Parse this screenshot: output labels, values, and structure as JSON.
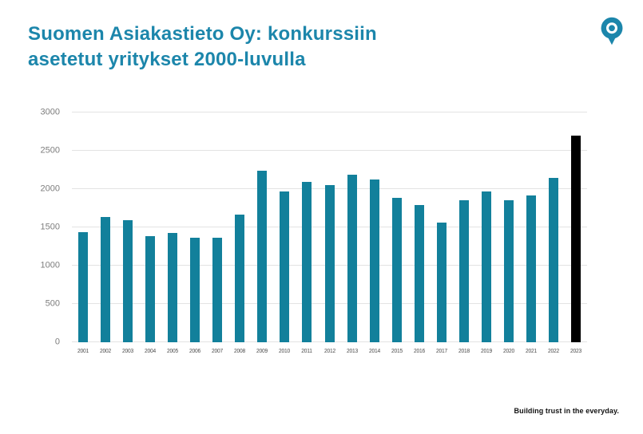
{
  "header": {
    "title_line1": "Suomen Asiakastieto Oy: konkurssiin",
    "title_line2": "asetetut yritykset 2000-luvulla",
    "title_color": "#1c86ab"
  },
  "logo": {
    "name": "asiakastieto-pin",
    "color": "#1c86ab"
  },
  "footer": {
    "tagline": "Building trust in the everyday."
  },
  "chart_data": {
    "type": "bar",
    "title": "Suomen Asiakastieto Oy: konkurssiin asetetut yritykset 2000-luvulla",
    "categories": [
      "2001",
      "2002",
      "2003",
      "2004",
      "2005",
      "2006",
      "2007",
      "2008",
      "2009",
      "2010",
      "2011",
      "2012",
      "2013",
      "2014",
      "2015",
      "2016",
      "2017",
      "2018",
      "2019",
      "2020",
      "2021",
      "2022",
      "2023"
    ],
    "values": [
      1435,
      1640,
      1590,
      1390,
      1430,
      1360,
      1365,
      1665,
      2235,
      1970,
      2090,
      2055,
      2190,
      2120,
      1890,
      1790,
      1560,
      1850,
      1970,
      1855,
      1920,
      2145,
      2700
    ],
    "xlabel": "",
    "ylabel": "",
    "ylim": [
      0,
      3000
    ],
    "yticks": [
      0,
      500,
      1000,
      1500,
      2000,
      2500,
      3000
    ],
    "grid": true,
    "legend": false,
    "bar_color": "#12809b",
    "highlight_category": "2023",
    "highlight_color": "#000000",
    "gridline_color": "#e3e3e3",
    "tick_label_color": "#7d7d7d"
  }
}
